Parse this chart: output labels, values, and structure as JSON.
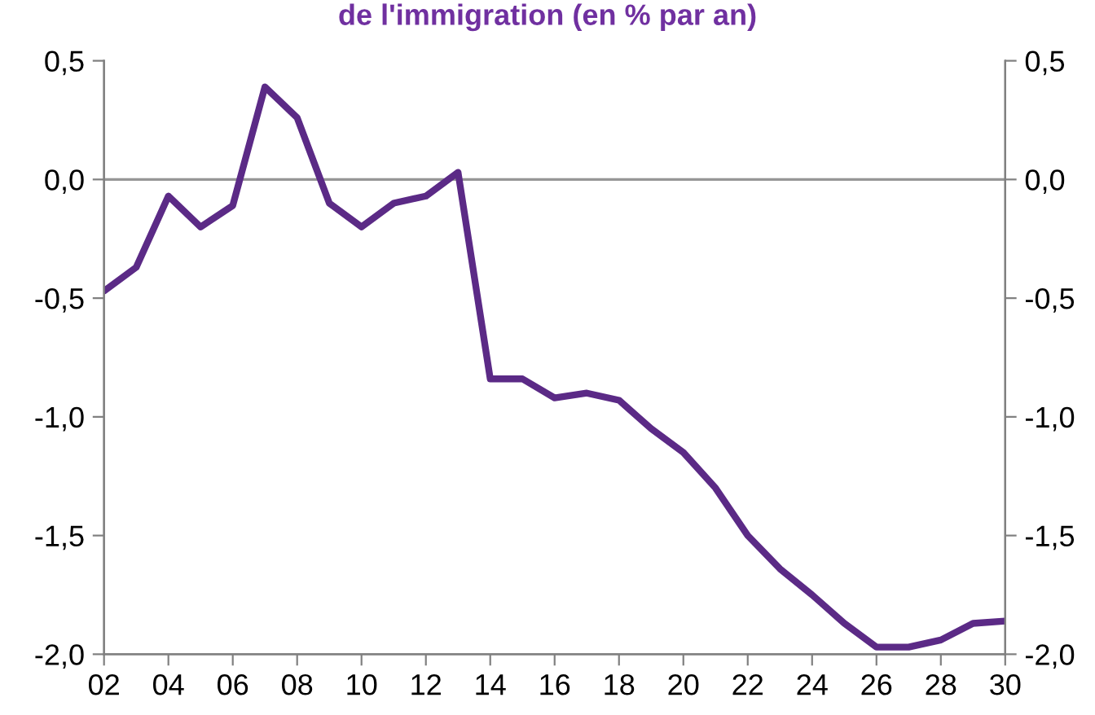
{
  "chart_data": {
    "type": "line",
    "title": "de l'immigration (en % par an)",
    "x": [
      2,
      3,
      4,
      5,
      6,
      7,
      8,
      9,
      10,
      11,
      12,
      13,
      14,
      15,
      16,
      17,
      18,
      19,
      20,
      21,
      22,
      23,
      24,
      25,
      26,
      27,
      28,
      29,
      30
    ],
    "series": [
      {
        "color": "#5b2a86",
        "values": [
          -0.47,
          -0.37,
          -0.07,
          -0.2,
          -0.11,
          0.39,
          0.26,
          -0.1,
          -0.2,
          -0.1,
          -0.07,
          0.03,
          -0.84,
          -0.84,
          -0.92,
          -0.9,
          -0.93,
          -1.05,
          -1.15,
          -1.3,
          -1.5,
          -1.64,
          -1.75,
          -1.87,
          -1.97,
          -1.97,
          -1.94,
          -1.87,
          -1.86
        ]
      }
    ],
    "xlim": [
      2,
      30
    ],
    "xticks": [
      {
        "value": 2,
        "label": "02"
      },
      {
        "value": 4,
        "label": "04"
      },
      {
        "value": 6,
        "label": "06"
      },
      {
        "value": 8,
        "label": "08"
      },
      {
        "value": 10,
        "label": "10"
      },
      {
        "value": 12,
        "label": "12"
      },
      {
        "value": 14,
        "label": "14"
      },
      {
        "value": 16,
        "label": "16"
      },
      {
        "value": 18,
        "label": "18"
      },
      {
        "value": 20,
        "label": "20"
      },
      {
        "value": 22,
        "label": "22"
      },
      {
        "value": 24,
        "label": "24"
      },
      {
        "value": 26,
        "label": "26"
      },
      {
        "value": 28,
        "label": "28"
      },
      {
        "value": 30,
        "label": "30"
      }
    ],
    "ylim": [
      -2.0,
      0.5
    ],
    "yticks": [
      {
        "value": -2.0,
        "label": "-2,0"
      },
      {
        "value": -1.5,
        "label": "-1,5"
      },
      {
        "value": -1.0,
        "label": "-1,0"
      },
      {
        "value": -0.5,
        "label": "-0,5"
      },
      {
        "value": 0.0,
        "label": "0,0"
      },
      {
        "value": 0.5,
        "label": "0,5"
      }
    ],
    "y2lim": [
      -2.0,
      0.5
    ],
    "y2ticks": [
      {
        "value": -2.0,
        "label": "-2,0"
      },
      {
        "value": -1.5,
        "label": "-1,5"
      },
      {
        "value": -1.0,
        "label": "-1,0"
      },
      {
        "value": -0.5,
        "label": "-0,5"
      },
      {
        "value": 0.0,
        "label": "0,0"
      },
      {
        "value": 0.5,
        "label": "0,5"
      }
    ],
    "ref_lines": [
      {
        "axis": "y",
        "value": 0,
        "color": "#969696"
      }
    ],
    "grid": false,
    "legend": false,
    "marker": "none",
    "line_style": "solid"
  }
}
